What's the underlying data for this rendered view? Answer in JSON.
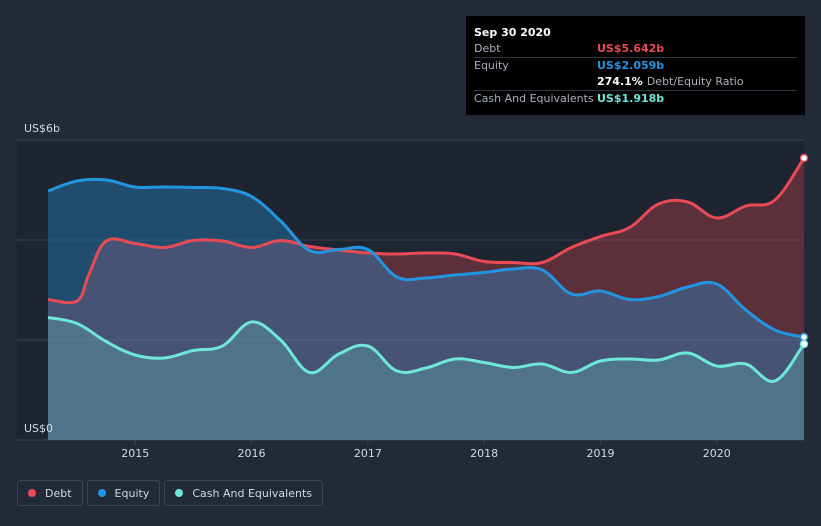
{
  "colors": {
    "debt": "#e84b55",
    "equity": "#2394e0",
    "cash": "#6ee7d8",
    "grid": "#3a4252",
    "tick": "#d3d8df"
  },
  "tooltip": {
    "date": "Sep 30 2020",
    "debt_label": "Debt",
    "debt_value": "US$5.642b",
    "equity_label": "Equity",
    "equity_value": "US$2.059b",
    "ratio_value": "274.1%",
    "ratio_label": "Debt/Equity Ratio",
    "cash_label": "Cash And Equivalents",
    "cash_value": "US$1.918b"
  },
  "legend": [
    {
      "label": "Debt",
      "color_key": "debt"
    },
    {
      "label": "Equity",
      "color_key": "equity"
    },
    {
      "label": "Cash And Equivalents",
      "color_key": "cash"
    }
  ],
  "chart_data": {
    "type": "area",
    "title": "",
    "xlabel": "",
    "ylabel": "",
    "xlim": [
      2014.25,
      2020.75
    ],
    "ylim": [
      0,
      6
    ],
    "y_tick_labels": [
      {
        "value": 6,
        "label": "US$6b"
      },
      {
        "value": 0,
        "label": "US$0"
      }
    ],
    "x_ticks": [
      2015,
      2016,
      2017,
      2018,
      2019,
      2020
    ],
    "x_tick_labels": [
      "2015",
      "2016",
      "2017",
      "2018",
      "2019",
      "2020"
    ],
    "grid": true,
    "legend_position": "bottom-left",
    "series": [
      {
        "name": "Debt",
        "color_key": "debt",
        "x": [
          2014.25,
          2014.5,
          2014.6,
          2014.75,
          2015.0,
          2015.25,
          2015.5,
          2015.75,
          2016.0,
          2016.25,
          2016.5,
          2016.75,
          2017.0,
          2017.25,
          2017.5,
          2017.75,
          2018.0,
          2018.25,
          2018.5,
          2018.75,
          2019.0,
          2019.25,
          2019.5,
          2019.75,
          2020.0,
          2020.25,
          2020.5,
          2020.75
        ],
        "y": [
          2.81,
          2.78,
          3.3,
          3.98,
          3.93,
          3.85,
          3.99,
          3.98,
          3.85,
          3.99,
          3.87,
          3.8,
          3.74,
          3.72,
          3.74,
          3.72,
          3.57,
          3.55,
          3.55,
          3.85,
          4.07,
          4.25,
          4.72,
          4.76,
          4.44,
          4.68,
          4.8,
          5.64
        ]
      },
      {
        "name": "Equity",
        "color_key": "equity",
        "x": [
          2014.25,
          2014.5,
          2014.75,
          2015.0,
          2015.25,
          2015.5,
          2015.75,
          2016.0,
          2016.25,
          2016.5,
          2016.75,
          2017.0,
          2017.25,
          2017.5,
          2017.75,
          2018.0,
          2018.25,
          2018.5,
          2018.75,
          2019.0,
          2019.25,
          2019.5,
          2019.75,
          2020.0,
          2020.25,
          2020.5,
          2020.75
        ],
        "y": [
          4.98,
          5.18,
          5.2,
          5.06,
          5.06,
          5.05,
          5.03,
          4.87,
          4.38,
          3.79,
          3.81,
          3.81,
          3.26,
          3.24,
          3.3,
          3.35,
          3.42,
          3.4,
          2.92,
          2.98,
          2.81,
          2.87,
          3.06,
          3.12,
          2.6,
          2.2,
          2.06
        ]
      },
      {
        "name": "Cash And Equivalents",
        "color_key": "cash",
        "x": [
          2014.25,
          2014.5,
          2014.75,
          2015.0,
          2015.25,
          2015.5,
          2015.75,
          2016.0,
          2016.25,
          2016.5,
          2016.75,
          2017.0,
          2017.25,
          2017.5,
          2017.75,
          2018.0,
          2018.25,
          2018.5,
          2018.75,
          2019.0,
          2019.25,
          2019.5,
          2019.75,
          2020.0,
          2020.25,
          2020.5,
          2020.75
        ],
        "y": [
          2.45,
          2.33,
          1.97,
          1.7,
          1.64,
          1.79,
          1.88,
          2.36,
          2.0,
          1.35,
          1.72,
          1.88,
          1.38,
          1.44,
          1.62,
          1.55,
          1.45,
          1.52,
          1.35,
          1.58,
          1.62,
          1.6,
          1.74,
          1.48,
          1.52,
          1.18,
          1.92
        ]
      }
    ]
  }
}
